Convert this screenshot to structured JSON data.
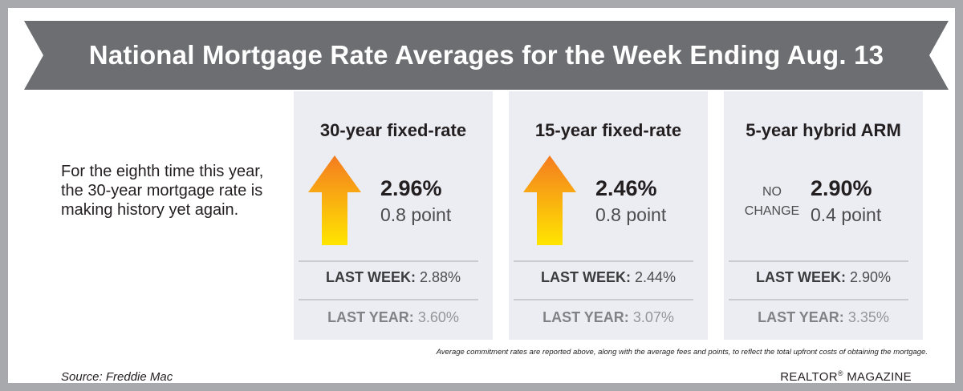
{
  "title": "National Mortgage Rate Averages for the Week Ending Aug. 13",
  "intro": "For the eighth time this year, the 30-year mortgage rate is making history yet again.",
  "panels": [
    {
      "title": "30-year fixed-rate",
      "direction": "up",
      "rate": "2.96%",
      "change": "0.8 point",
      "last_week_label": "LAST WEEK:",
      "last_week_value": "2.88%",
      "last_year_label": "LAST YEAR:",
      "last_year_value": "3.60%"
    },
    {
      "title": "15-year fixed-rate",
      "direction": "up",
      "rate": "2.46%",
      "change": "0.8 point",
      "last_week_label": "LAST WEEK:",
      "last_week_value": "2.44%",
      "last_year_label": "LAST YEAR:",
      "last_year_value": "3.07%"
    },
    {
      "title": "5-year hybrid ARM",
      "direction": "none",
      "no_change_line1": "NO",
      "no_change_line2": "CHANGE",
      "rate": "2.90%",
      "change": "0.4 point",
      "last_week_label": "LAST WEEK:",
      "last_week_value": "2.90%",
      "last_year_label": "LAST YEAR:",
      "last_year_value": "3.35%"
    }
  ],
  "footnote": "Average commitment rates are reported above, along with the average fees and points, to reflect the total upfront costs of obtaining the mortgage.",
  "source": "Source: Freddie Mac",
  "brand": {
    "name": "REALTOR",
    "mark": "®",
    "suffix": "MAGAZINE"
  },
  "colors": {
    "frame": "#a7a9ac",
    "banner": "#6d6e71",
    "panel": "#ecedf3",
    "arrow_top": "#f47b20",
    "arrow_bottom": "#ffe600"
  }
}
